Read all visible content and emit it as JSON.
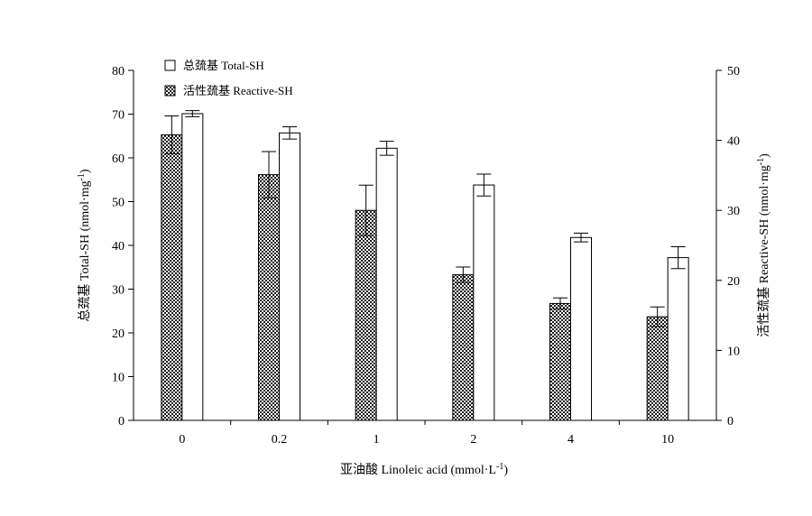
{
  "chart_data": {
    "type": "bar",
    "categories": [
      "0",
      "0.2",
      "1",
      "2",
      "4",
      "10"
    ],
    "xlabel": "亚油酸 Linoleic acid (mmol·L",
    "xlabel_sup": "-1",
    "xlabel_tail": ")",
    "ylabel_left": "总巯基 Total-SH (nmol·mg",
    "ylabel_left_sup": "-1",
    "ylabel_left_tail": ")",
    "ylabel_right": "活性巯基 Reactive-SH (nmol·mg",
    "ylabel_right_sup": "-1",
    "ylabel_right_tail": ")",
    "ylim_left": [
      0,
      80
    ],
    "yticks_left": [
      "0",
      "10",
      "20",
      "30",
      "40",
      "50",
      "60",
      "70",
      "80"
    ],
    "ylim_right": [
      0,
      50
    ],
    "yticks_right": [
      "0",
      "10",
      "20",
      "30",
      "40",
      "50"
    ],
    "grid": false,
    "legend_position": "top-left",
    "series": [
      {
        "name": "活性巯基 Reactive-SH",
        "axis": "right",
        "pattern": "checkered",
        "values": [
          40.8,
          35.1,
          30.0,
          20.8,
          16.7,
          14.8
        ],
        "errors": [
          2.7,
          3.3,
          3.6,
          1.1,
          0.8,
          1.4
        ]
      },
      {
        "name": "总巯基 Total-SH",
        "axis": "left",
        "pattern": "open",
        "values": [
          70.1,
          65.7,
          62.2,
          53.8,
          41.8,
          37.2
        ],
        "errors": [
          0.7,
          1.4,
          1.6,
          2.5,
          1.0,
          2.5
        ]
      }
    ]
  }
}
